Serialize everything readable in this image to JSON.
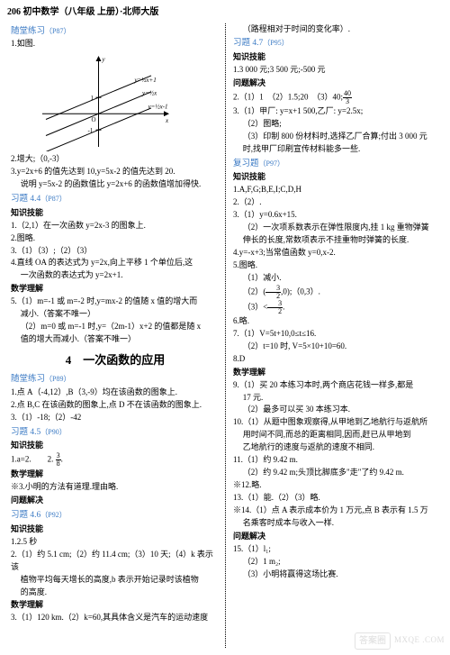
{
  "header": "206  初中数学（八年级  上册）·北师大版",
  "left": {
    "sec1": {
      "title": "随堂练习",
      "page": "（P87）"
    },
    "l1": "1.如图.",
    "chart": {
      "type": "line",
      "lines": [
        {
          "label": "y=½x+1",
          "slope": 0.5,
          "intercept": 1,
          "color": "#000"
        },
        {
          "label": "y=½x",
          "slope": 0.5,
          "intercept": 0,
          "color": "#000"
        },
        {
          "label": "y=½x-1",
          "slope": 0.5,
          "intercept": -1,
          "color": "#000"
        }
      ],
      "xlabel": "x",
      "ylabel": "y",
      "label_fontsize": 7,
      "xlim": [
        -3,
        3
      ],
      "ylim": [
        -2,
        3
      ],
      "width": 150,
      "height": 110,
      "axis_color": "#000"
    },
    "l2": "2.增大;（0,-3）",
    "l3a": "3.y=2x+6 的值先达到 10,y=5x-2 的值先达到 20.",
    "l3b": "说明 y=5x-2 的函数值比 y=2x+6 的函数值增加得快.",
    "sec2": {
      "title": "习题 4.4",
      "page": "（P87）"
    },
    "h_zs": "知识技能",
    "l4": "1.（2,1）在一次函数 y=2x-3 的图象上.",
    "l5": "2.图略.",
    "l6": "3.（1）（3）;（2）（3）",
    "l7a": "4.直线 OA 的表达式为 y=2x,向上平移 1 个单位后,这",
    "l7b": "一次函数的表达式为 y=2x+1.",
    "h_sx": "数学理解",
    "l8a": "5.（1）m=-1 或 m=-2 时,y=mx-2 的值随 x 值的增大而",
    "l8b": "减小.（答案不唯一）",
    "l8c": "（2）m=0 或 m=-1 时,y=（2m-1）x+2 的值都是随 x",
    "l8d": "值的增大而减小.（答案不唯一）",
    "chapter": "4　一次函数的应用",
    "sec3": {
      "title": "随堂练习",
      "page": "（P89）"
    },
    "l9": "1.点 A（-4,12）,B（3,-9）均在该函数的图象上.",
    "l10": "2.点 B,C 在该函数的图象上,点 D 不在该函数的图象上.",
    "l11": "3.（1）-18;（2）-42",
    "sec4": {
      "title": "习题 4.5",
      "page": "（P90）"
    },
    "l12": "1.a=2.　　2. 3/8 .",
    "l13": "※3.小明的方法有道理.理由略.",
    "h_wt": "问题解决",
    "sec5": {
      "title": "习题 4.6",
      "page": "（P92）"
    },
    "l14": "1.2.5 秒",
    "l15a": "2.（1）约 5.1 cm;（2）约 11.4 cm;（3）10 天;（4）k 表示该",
    "l15b": "植物平均每天增长的高度,b 表示开始记录时该植物",
    "l15c": "的高度.",
    "l16a": "3.（1）120 km.（2）k=60,其具体含义是汽车的运动速度"
  },
  "right": {
    "r0": "（路程相对于时间的变化率）.",
    "sec6": {
      "title": "习题 4.7",
      "page": "（P95）"
    },
    "h_zs": "知识技能",
    "r1": "1.3 000 元;3 500 元;-500 元",
    "h_wt": "问题解决",
    "r2": "2.（1）1　（2）1.5;20　（3）40; 40/3",
    "r3a": "3.（1）甲厂: y=x+1 500,乙厂: y=2.5x;",
    "r3b": "（2）图略;",
    "r3c": "（3）印制 800 份材料时,选择乙厂合算;付出 3 000 元",
    "r3d": "时,找甲厂印刷宣传材料能多一些.",
    "sec7": {
      "title": "复习题",
      "page": "（P97）"
    },
    "r4": "1.A,F,G;B,E,I;C,D,H",
    "r5": "2.（2）.",
    "r6": "3.（1）y=0.6x+15.",
    "r6b": "（2）一次项系数表示在弹性限度内,挂 1 kg 重物弹簧",
    "r6c": "伸长的长度,常数项表示不挂重物时弹簧的长度.",
    "r7": "4.y=-x+3;当常值函数 y=0,x-2.",
    "r8": "5.图略.",
    "r9a": "（1）减小.",
    "r9b": "（2）( 3/2 , 0 );（0,3）.",
    "r9c": "（3）< 3/2 .",
    "r10": "6.略.",
    "r11a": "7.（1）V=5t+10,0≤t≤16.",
    "r11b": "（2）t=10 时, V=5×10+10=60.",
    "r12": "8.D",
    "h_sx": "数学理解",
    "r13a": "9.（1）买 20 本练习本时,两个商店花钱一样多,都是",
    "r13b": "17 元.",
    "r13c": "（2）最多可以买 30 本练习本.",
    "r14a": "10.（1）从题中图象观察得,从甲地到乙地航行与返航所",
    "r14b": "用时间不同,而总的距离相同,因而,赶已从甲地到",
    "r14c": "乙地航行的速度与返航的速度不相同.",
    "r15a": "11.（1）约 9.42 m.",
    "r15b": "（2）约 9.42 m;头顶比脚底多\"走\"了约 9.42 m.",
    "r16": "※12.略.",
    "r17": "13.（1）能.（2）（3）略.",
    "r18a": "※14.（1）点 A 表示成本价为 1 万元,点 B 表示有 1.5 万",
    "r18b": "名乘客时成本与收入一样.",
    "h_wt2": "问题解决",
    "r19a": "15.（1）l₁;",
    "r19b": "（2）1 m₂;",
    "r19c": "（3）小明将赢得这场比赛."
  },
  "watermark": {
    "box": "答案圈",
    "url": "MXQE .COM"
  }
}
